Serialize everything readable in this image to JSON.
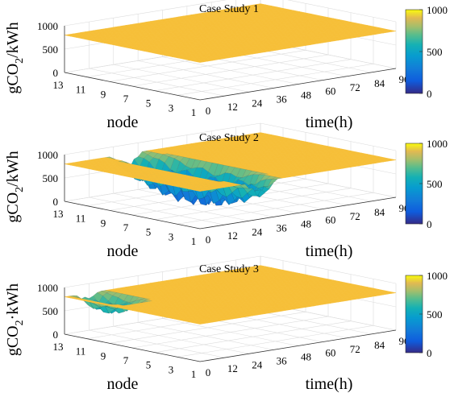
{
  "chart_data": [
    {
      "type": "surface",
      "title": "Case Study 1",
      "xlabel": "node",
      "ylabel": "time(h)",
      "zlabel_parts": [
        "gCO",
        "2",
        "/kWh"
      ],
      "node_ticks": [
        "13",
        "11",
        "9",
        "7",
        "5",
        "3",
        "1"
      ],
      "time_ticks": [
        "0",
        "12",
        "24",
        "36",
        "48",
        "60",
        "72",
        "84",
        "96"
      ],
      "z_ticks": [
        "0",
        "500",
        "1000"
      ],
      "zlim": [
        0,
        1000
      ],
      "colorbar_ticks": [
        "0",
        "500",
        "1000"
      ],
      "colorbar_range": [
        0,
        1000
      ],
      "plateau_value": 800,
      "dips": []
    },
    {
      "type": "surface",
      "title": "Case Study 2",
      "xlabel": "node",
      "ylabel": "time(h)",
      "zlabel_parts": [
        "gCO",
        "2",
        "/kWh"
      ],
      "node_ticks": [
        "13",
        "11",
        "9",
        "7",
        "5",
        "3",
        "1"
      ],
      "time_ticks": [
        "0",
        "12",
        "24",
        "36",
        "48",
        "60",
        "72",
        "84",
        "96"
      ],
      "z_ticks": [
        "0",
        "500",
        "1000"
      ],
      "zlim": [
        0,
        1000
      ],
      "colorbar_ticks": [
        "0",
        "500",
        "1000"
      ],
      "colorbar_range": [
        0,
        1000
      ],
      "plateau_value": 800,
      "dips": [
        {
          "node_start": 1,
          "node_end": 13,
          "time_start": 18,
          "time_end": 42,
          "min_value": 0
        }
      ]
    },
    {
      "type": "surface",
      "title": "Case Study 3",
      "xlabel": "node",
      "ylabel": "time(h)",
      "zlabel_parts": [
        "gCO",
        "2",
        "·kWh"
      ],
      "node_ticks": [
        "13",
        "11",
        "9",
        "7",
        "5",
        "3",
        "1"
      ],
      "time_ticks": [
        "0",
        "12",
        "24",
        "36",
        "48",
        "60",
        "72",
        "84",
        "96"
      ],
      "z_ticks": [
        "0",
        "500",
        "1000"
      ],
      "zlim": [
        0,
        1000
      ],
      "colorbar_ticks": [
        "0",
        "500",
        "1000"
      ],
      "colorbar_range": [
        0,
        1000
      ],
      "plateau_value": 800,
      "dips": [
        {
          "node_start": 9,
          "node_end": 13,
          "time_start": 2,
          "time_end": 20,
          "min_value": 450
        }
      ]
    }
  ]
}
